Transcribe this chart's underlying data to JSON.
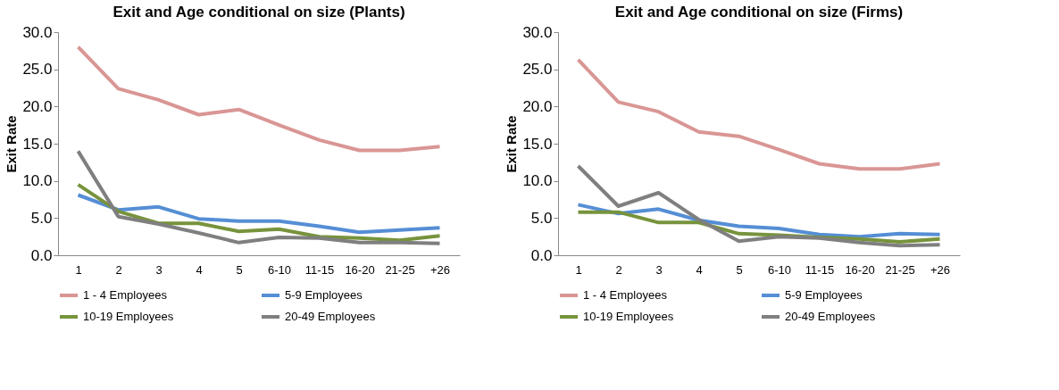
{
  "chart_data": [
    {
      "type": "line",
      "title": "Exit and Age conditional on size (Plants)",
      "ylabel": "Exit Rate",
      "categories": [
        "1",
        "2",
        "3",
        "4",
        "5",
        "6-10",
        "11-15",
        "16-20",
        "21-25",
        "+26"
      ],
      "series": [
        {
          "name": "1 - 4 Employees",
          "color": "#d99694",
          "values": [
            28.0,
            22.4,
            20.9,
            18.9,
            19.6,
            17.5,
            15.5,
            14.1,
            14.1,
            14.6
          ]
        },
        {
          "name": "5-9 Employees",
          "color": "#558ed5",
          "values": [
            8.1,
            6.1,
            6.5,
            4.9,
            4.6,
            4.6,
            3.9,
            3.1,
            3.4,
            3.7
          ]
        },
        {
          "name": "10-19 Employees",
          "color": "#77933c",
          "values": [
            9.5,
            5.9,
            4.3,
            4.3,
            3.2,
            3.5,
            2.5,
            2.3,
            2.0,
            2.6
          ]
        },
        {
          "name": "20-49 Employees",
          "color": "#7f7f7f",
          "values": [
            14.0,
            5.2,
            4.2,
            3.0,
            1.7,
            2.4,
            2.3,
            1.7,
            1.7,
            1.6
          ]
        }
      ],
      "ylim": [
        0,
        30
      ],
      "yticks": [
        {
          "value": 0,
          "label": "0.0"
        },
        {
          "value": 5,
          "label": "5.0"
        },
        {
          "value": 10,
          "label": "10.0"
        },
        {
          "value": 15,
          "label": "15.0"
        },
        {
          "value": 20,
          "label": "20.0"
        },
        {
          "value": 25,
          "label": "25.0"
        },
        {
          "value": 30,
          "label": "30.0"
        }
      ],
      "grid": false,
      "legend": "bottom",
      "marker": "none",
      "line_style": "solid"
    },
    {
      "type": "line",
      "title": "Exit and Age conditional on size (Firms)",
      "ylabel": "Exit Rate",
      "categories": [
        "1",
        "2",
        "3",
        "4",
        "5",
        "6-10",
        "11-15",
        "16-20",
        "21-25",
        "+26"
      ],
      "series": [
        {
          "name": "1 - 4 Employees",
          "color": "#d99694",
          "values": [
            26.3,
            20.6,
            19.3,
            16.6,
            16.0,
            14.2,
            12.3,
            11.6,
            11.6,
            12.3
          ]
        },
        {
          "name": "5-9 Employees",
          "color": "#558ed5",
          "values": [
            6.8,
            5.6,
            6.2,
            4.7,
            3.9,
            3.6,
            2.8,
            2.5,
            2.9,
            2.8
          ]
        },
        {
          "name": "10-19 Employees",
          "color": "#77933c",
          "values": [
            5.8,
            5.8,
            4.4,
            4.4,
            2.9,
            2.7,
            2.4,
            2.2,
            1.8,
            2.2
          ]
        },
        {
          "name": "20-49 Employees",
          "color": "#7f7f7f",
          "values": [
            12.0,
            6.6,
            8.4,
            4.8,
            1.9,
            2.5,
            2.3,
            1.7,
            1.3,
            1.4
          ]
        }
      ],
      "ylim": [
        0,
        30
      ],
      "yticks": [
        {
          "value": 0,
          "label": "0.0"
        },
        {
          "value": 5,
          "label": "5.0"
        },
        {
          "value": 10,
          "label": "10.0"
        },
        {
          "value": 15,
          "label": "15.0"
        },
        {
          "value": 20,
          "label": "20.0"
        },
        {
          "value": 25,
          "label": "25.0"
        },
        {
          "value": 30,
          "label": "30.0"
        }
      ],
      "grid": false,
      "legend": "bottom",
      "marker": "none",
      "line_style": "solid"
    }
  ]
}
